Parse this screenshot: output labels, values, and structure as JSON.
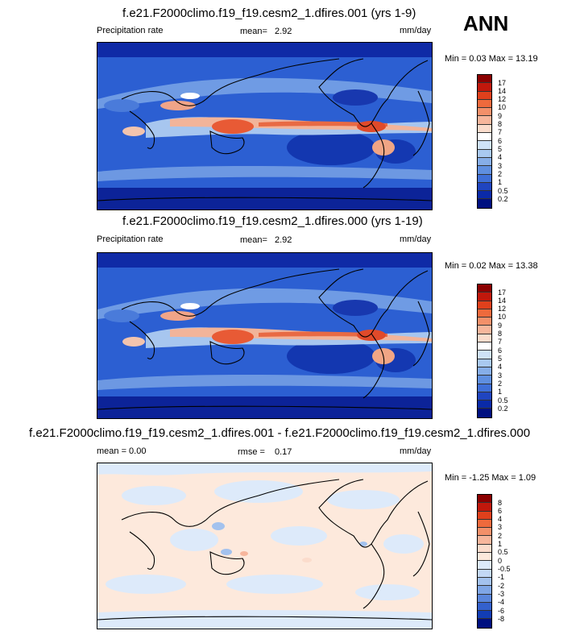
{
  "season": "ANN",
  "panels": [
    {
      "title": "f.e21.F2000climo.f19_f19.cesm2_1.dfires.001 (yrs 1-9)",
      "left_label": "Precipitation rate",
      "stat_label": "mean=",
      "stat_value": "2.92",
      "units": "mm/day",
      "minmax": "Min =  0.03 Max =  13.19",
      "cbar_ticks": [
        "17",
        "14",
        "12",
        "10",
        "9",
        "8",
        "7",
        "6",
        "5",
        "4",
        "3",
        "2",
        "1",
        "0.5",
        "0.2"
      ],
      "cbar_colors": [
        "#8b0000",
        "#c1180c",
        "#e0401c",
        "#ee6a3c",
        "#f3906a",
        "#f7b69c",
        "#fbdccc",
        "#ffffff",
        "#cfe2f7",
        "#a9c9f0",
        "#86aee8",
        "#5f8fe0",
        "#3f6fd8",
        "#2045c0",
        "#0a2aa8",
        "#001080"
      ]
    },
    {
      "title": "f.e21.F2000climo.f19_f19.cesm2_1.dfires.000 (yrs 1-19)",
      "left_label": "Precipitation rate",
      "stat_label": "mean=",
      "stat_value": "2.92",
      "units": "mm/day",
      "minmax": "Min =  0.02 Max =  13.38",
      "cbar_ticks": [
        "17",
        "14",
        "12",
        "10",
        "9",
        "8",
        "7",
        "6",
        "5",
        "4",
        "3",
        "2",
        "1",
        "0.5",
        "0.2"
      ],
      "cbar_colors": [
        "#8b0000",
        "#c1180c",
        "#e0401c",
        "#ee6a3c",
        "#f3906a",
        "#f7b69c",
        "#fbdccc",
        "#ffffff",
        "#cfe2f7",
        "#a9c9f0",
        "#86aee8",
        "#5f8fe0",
        "#3f6fd8",
        "#2045c0",
        "#0a2aa8",
        "#001080"
      ]
    },
    {
      "title": "f.e21.F2000climo.f19_f19.cesm2_1.dfires.001 - f.e21.F2000climo.f19_f19.cesm2_1.dfires.000",
      "left_label": "mean =   0.00",
      "stat_label": "rmse =",
      "stat_value": "0.17",
      "units": "mm/day",
      "minmax": "Min =  -1.25 Max =   1.09",
      "cbar_ticks": [
        "8",
        "6",
        "4",
        "3",
        "2",
        "1",
        "0.5",
        "0",
        "-0.5",
        "-1",
        "-2",
        "-3",
        "-4",
        "-6",
        "-8"
      ],
      "cbar_colors": [
        "#8b0000",
        "#c1180c",
        "#e0401c",
        "#ee6a3c",
        "#f3906a",
        "#f7b69c",
        "#fbdccc",
        "#fde9dc",
        "#ddeafa",
        "#c3d8f5",
        "#a3c2ee",
        "#7fa6e6",
        "#5a86dc",
        "#3461cd",
        "#123db5",
        "#001080"
      ]
    }
  ]
}
